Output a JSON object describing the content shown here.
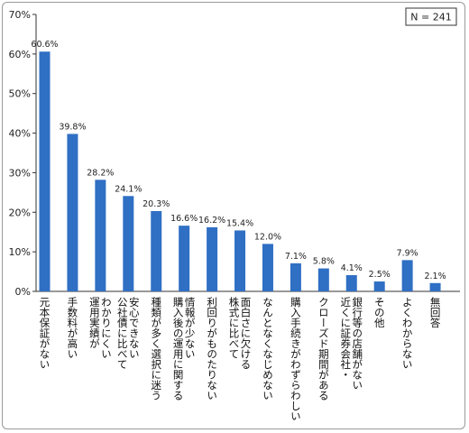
{
  "chart_data": {
    "type": "bar",
    "title": "",
    "xlabel": "",
    "ylabel": "",
    "ylim": [
      0,
      70
    ],
    "y_ticks": [
      "0%",
      "10%",
      "20%",
      "30%",
      "40%",
      "50%",
      "60%",
      "70%"
    ],
    "y_tick_values": [
      0,
      10,
      20,
      30,
      40,
      50,
      60,
      70
    ],
    "grid": false,
    "bar_color": "#2f6fc4",
    "sample_size_label": "N = 241",
    "categories": [
      [
        "元本保証がない"
      ],
      [
        "手数料が高い"
      ],
      [
        "わかりにくい",
        "運用実績が"
      ],
      [
        "安心できない",
        "公社債に比べて"
      ],
      [
        "種類が多く選択に迷う"
      ],
      [
        "情報が少ない",
        "購入後の運用に関する"
      ],
      [
        "利回りがものたりない"
      ],
      [
        "面白さに欠ける",
        "株式に比べて"
      ],
      [
        "なんとなくなじめない"
      ],
      [
        "購入手続きがわずらわしい"
      ],
      [
        "クローズド期間がある"
      ],
      [
        "銀行等の店舗がない",
        "近くに証券会社・"
      ],
      [
        "その他"
      ],
      [
        "よくわからない"
      ],
      [
        "無回答"
      ]
    ],
    "values": [
      60.6,
      39.8,
      28.2,
      24.1,
      20.3,
      16.6,
      16.2,
      15.4,
      12.0,
      7.1,
      5.8,
      4.1,
      2.5,
      7.9,
      2.1
    ],
    "value_labels": [
      "60.6%",
      "39.8%",
      "28.2%",
      "24.1%",
      "20.3%",
      "16.6%",
      "16.2%",
      "15.4%",
      "12.0%",
      "7.1%",
      "5.8%",
      "4.1%",
      "2.5%",
      "7.9%",
      "2.1%"
    ]
  }
}
